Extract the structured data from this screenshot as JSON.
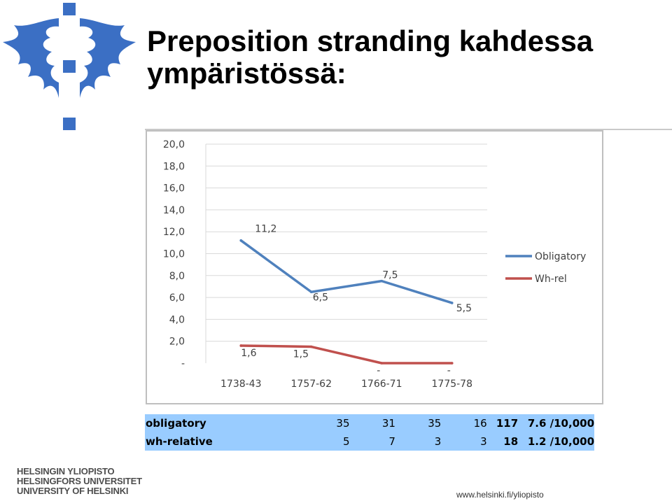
{
  "slide": {
    "title": "Preposition stranding kahdessa ympäristössä:"
  },
  "colors": {
    "obligatory": "#4f81bd",
    "whrel": "#c0504d",
    "table_bg": "#99ccff",
    "logo": "#3b6fc4"
  },
  "chart_data": {
    "type": "line",
    "categories": [
      "1738-43",
      "1757-62",
      "1766-71",
      "1775-78"
    ],
    "series": [
      {
        "name": "Obligatory",
        "values": [
          11.2,
          6.5,
          7.5,
          5.5
        ],
        "labels": [
          "11,2",
          "6,5",
          "7,5",
          "5,5"
        ]
      },
      {
        "name": "Wh-rel",
        "values": [
          1.6,
          1.5,
          0,
          0
        ],
        "labels": [
          "1,6",
          "1,5",
          "-",
          "-"
        ]
      }
    ],
    "yticks": [
      "-",
      "2,0",
      "4,0",
      "6,0",
      "8,0",
      "10,0",
      "12,0",
      "14,0",
      "16,0",
      "18,0",
      "20,0"
    ],
    "ylim": [
      0,
      20
    ],
    "grid": true,
    "legend": "right"
  },
  "table": {
    "rows": [
      {
        "label": "obligatory",
        "c1": "35",
        "c2": "31",
        "c3": "35",
        "c4": "16",
        "total": "117",
        "rate": "7.6 /10,000"
      },
      {
        "label": "wh-relative",
        "c1": "5",
        "c2": "7",
        "c3": "3",
        "c4": "3",
        "total": "18",
        "rate": "1.2 /10,000"
      }
    ]
  },
  "footer": {
    "university_lines": [
      "HELSINGIN YLIOPISTO",
      "HELSINGFORS UNIVERSITET",
      "UNIVERSITY OF HELSINKI"
    ],
    "url": "www.helsinki.fi/yliopisto"
  },
  "icons": {
    "logo": "flame-cross-logo-icon"
  }
}
